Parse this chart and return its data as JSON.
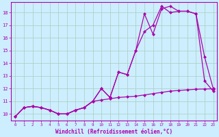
{
  "xlabel": "Windchill (Refroidissement éolien,°C)",
  "background_color": "#cceeff",
  "grid_color": "#aaccbb",
  "line_color": "#aa00aa",
  "xmin": -0.5,
  "xmax": 23.4,
  "ymin": 9.5,
  "ymax": 18.8,
  "yticks": [
    10,
    11,
    12,
    13,
    14,
    15,
    16,
    17,
    18
  ],
  "xticks": [
    0,
    1,
    2,
    3,
    4,
    5,
    6,
    7,
    8,
    9,
    10,
    11,
    12,
    13,
    14,
    15,
    16,
    17,
    18,
    19,
    20,
    21,
    22,
    23
  ],
  "series1_x": [
    0,
    1,
    2,
    3,
    4,
    5,
    6,
    7,
    8,
    9,
    10,
    11,
    12,
    13,
    14,
    15,
    16,
    17,
    18,
    19,
    20,
    21,
    22,
    23
  ],
  "series1_y": [
    9.8,
    10.5,
    10.6,
    10.5,
    10.3,
    10.0,
    10.0,
    10.3,
    10.5,
    11.0,
    12.0,
    11.3,
    13.3,
    13.1,
    15.0,
    17.9,
    16.3,
    18.3,
    18.5,
    18.1,
    18.1,
    17.9,
    14.5,
    12.0
  ],
  "series2_x": [
    0,
    1,
    2,
    3,
    4,
    5,
    6,
    7,
    8,
    9,
    10,
    11,
    12,
    13,
    14,
    15,
    16,
    17,
    18,
    19,
    20,
    21,
    22,
    23
  ],
  "series2_y": [
    9.8,
    10.5,
    10.6,
    10.5,
    10.3,
    10.0,
    10.0,
    10.3,
    10.5,
    11.0,
    12.0,
    11.3,
    13.3,
    13.1,
    15.0,
    16.5,
    17.0,
    18.5,
    18.0,
    18.1,
    18.1,
    17.9,
    12.6,
    11.8
  ],
  "series3_x": [
    0,
    1,
    2,
    3,
    4,
    5,
    6,
    7,
    8,
    9,
    10,
    11,
    12,
    13,
    14,
    15,
    16,
    17,
    18,
    19,
    20,
    21,
    22,
    23
  ],
  "series3_y": [
    9.8,
    10.5,
    10.6,
    10.5,
    10.3,
    10.0,
    10.0,
    10.3,
    10.5,
    11.0,
    11.1,
    11.2,
    11.3,
    11.35,
    11.4,
    11.5,
    11.6,
    11.7,
    11.8,
    11.85,
    11.9,
    11.95,
    11.97,
    11.98
  ]
}
